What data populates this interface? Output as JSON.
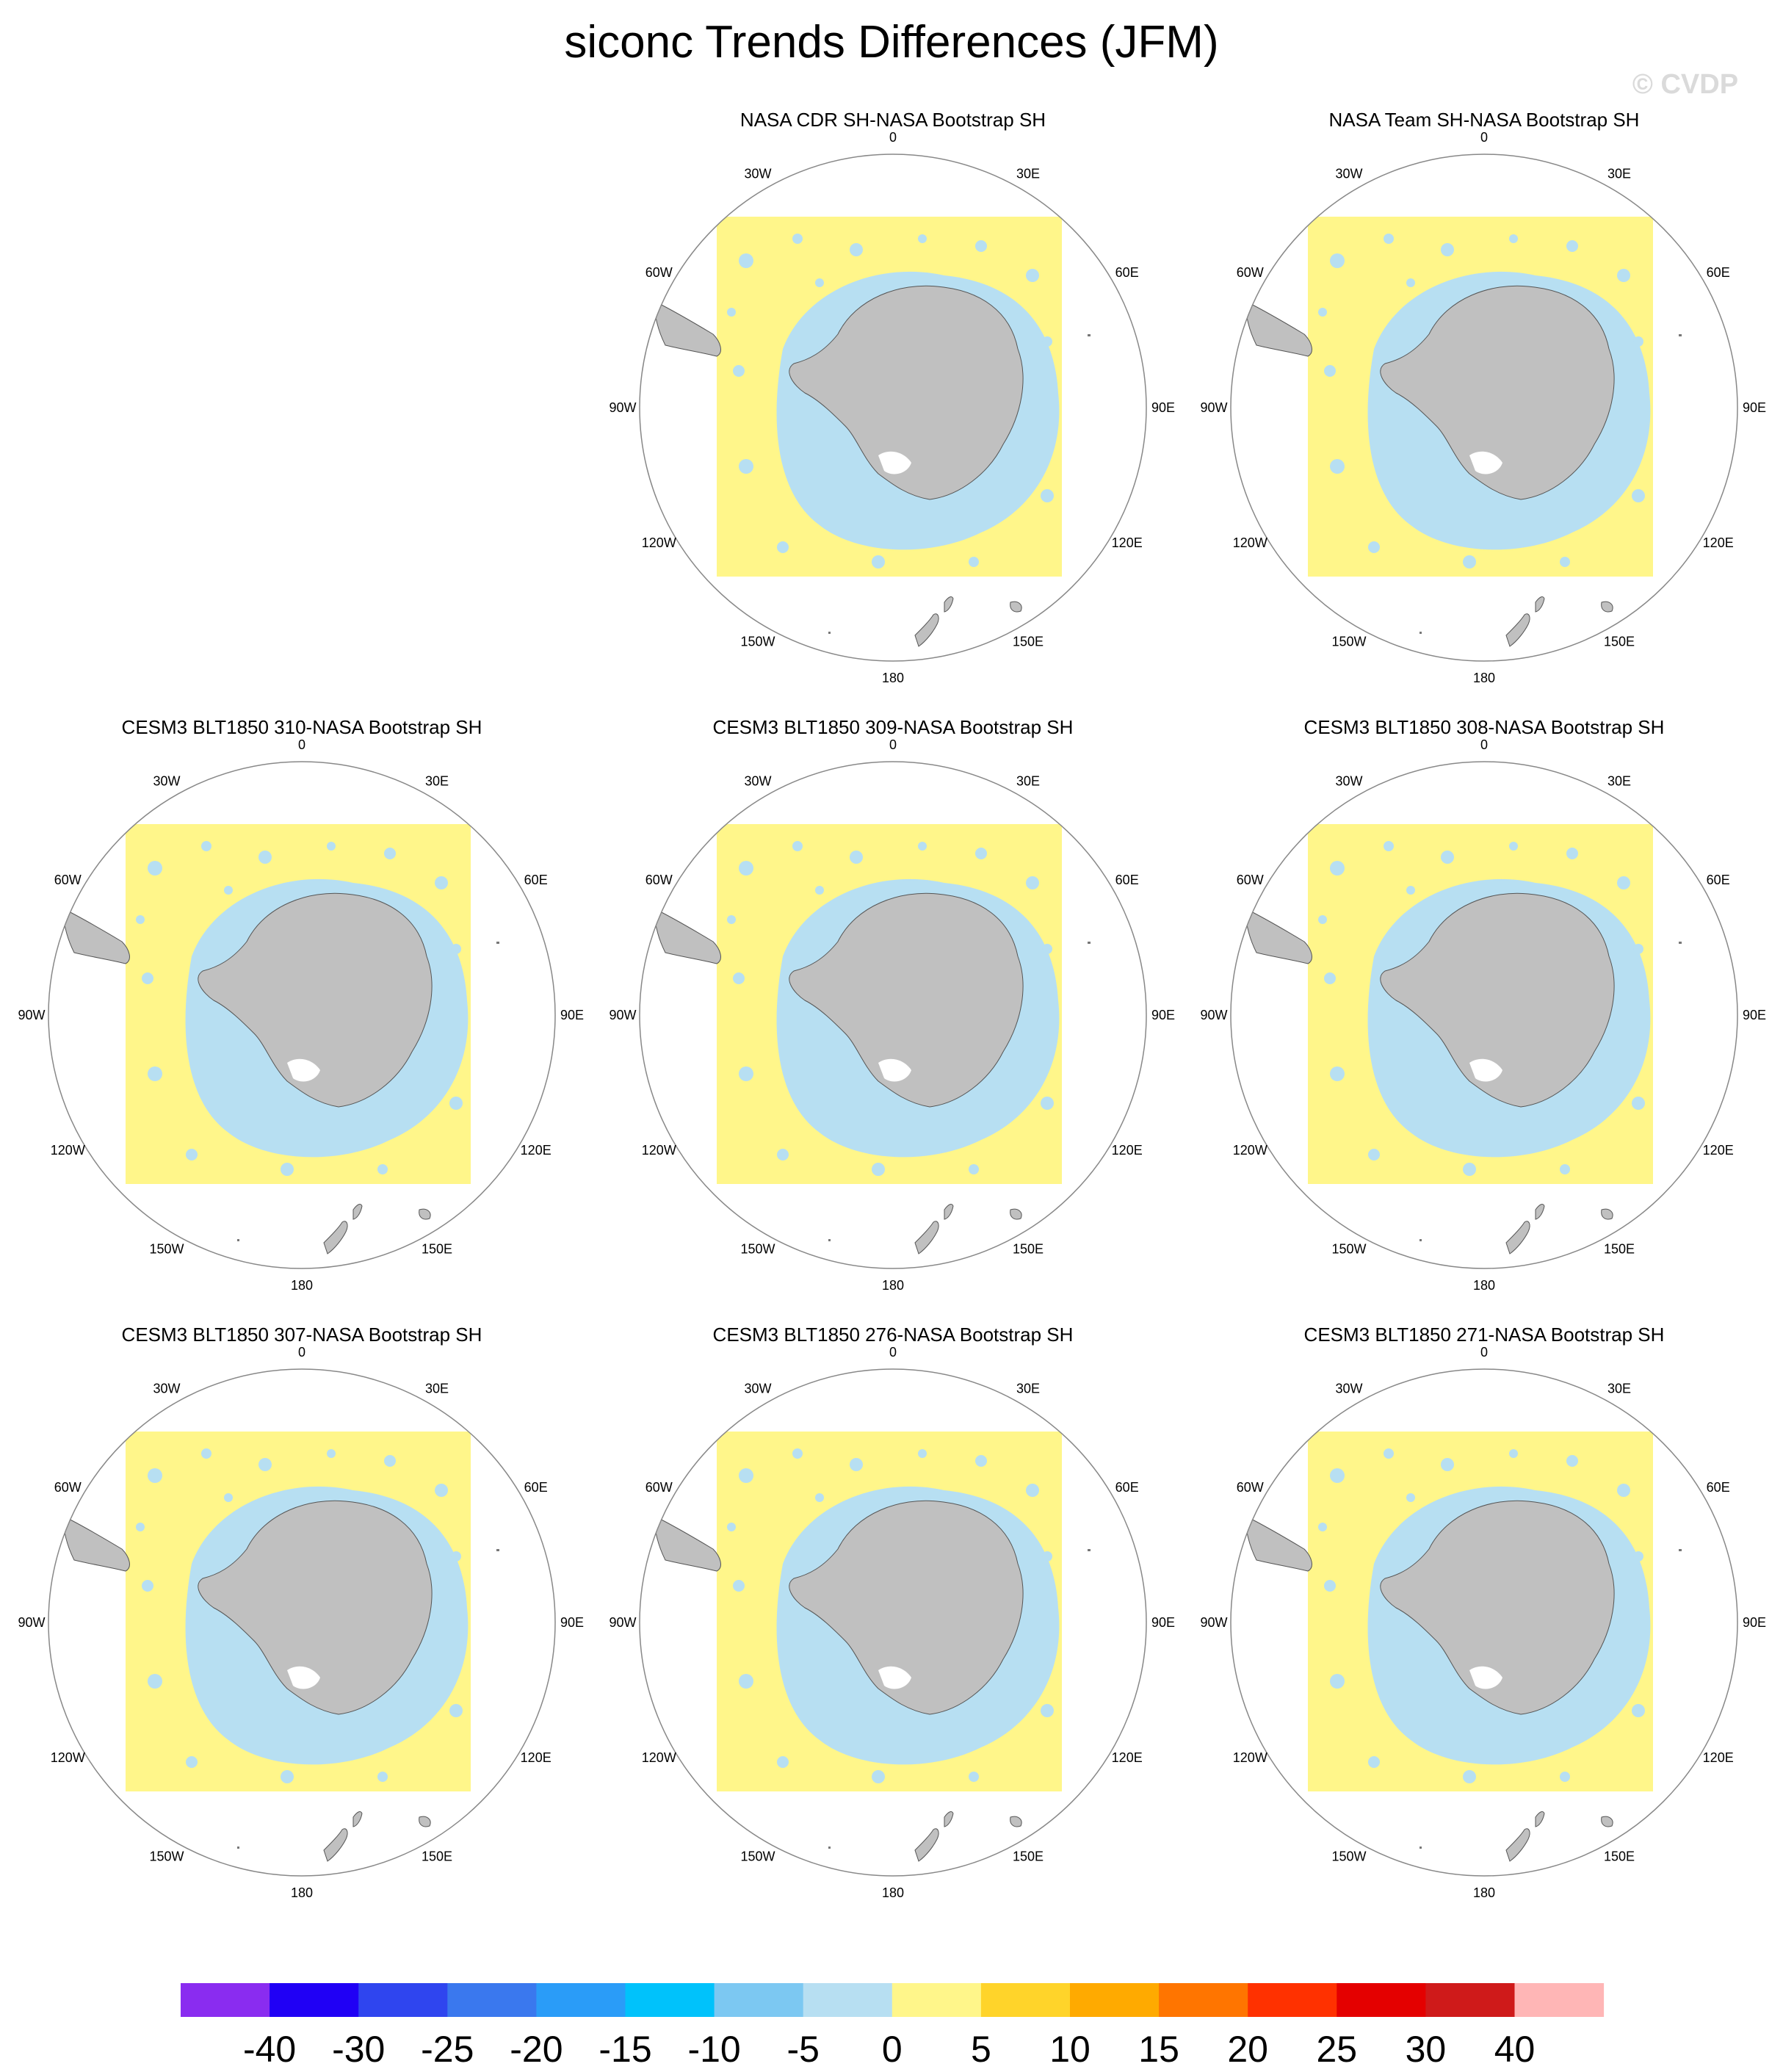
{
  "title": "siconc Trends Differences (JFM)",
  "watermark": "© CVDP",
  "longitude_labels": [
    "0",
    "30E",
    "60E",
    "90E",
    "120E",
    "150E",
    "180",
    "150W",
    "120W",
    "90W",
    "60W",
    "30W"
  ],
  "panels": [
    {
      "title": "NASA CDR SH-NASA Bootstrap SH"
    },
    {
      "title": "NASA Team SH-NASA Bootstrap SH"
    },
    {
      "title": "CESM3 BLT1850 310-NASA Bootstrap SH"
    },
    {
      "title": "CESM3 BLT1850 309-NASA Bootstrap SH"
    },
    {
      "title": "CESM3 BLT1850 308-NASA Bootstrap SH"
    },
    {
      "title": "CESM3 BLT1850 307-NASA Bootstrap SH"
    },
    {
      "title": "CESM3 BLT1850 276-NASA Bootstrap SH"
    },
    {
      "title": "CESM3 BLT1850 271-NASA Bootstrap SH"
    }
  ],
  "colorbar": {
    "colors": [
      "#8a2cf0",
      "#2000f5",
      "#2f45ef",
      "#3a78ee",
      "#2a9cf8",
      "#00c2fb",
      "#7cc8f2",
      "#b7dff2",
      "#fff68a",
      "#ffd42a",
      "#ffaa00",
      "#ff7500",
      "#ff3100",
      "#e40000",
      "#cf1a1a",
      "#ffb6b6"
    ],
    "labels": [
      "-40",
      "-30",
      "-25",
      "-20",
      "-15",
      "-10",
      "-5",
      "0",
      "5",
      "10",
      "15",
      "20",
      "25",
      "30",
      "40"
    ]
  }
}
